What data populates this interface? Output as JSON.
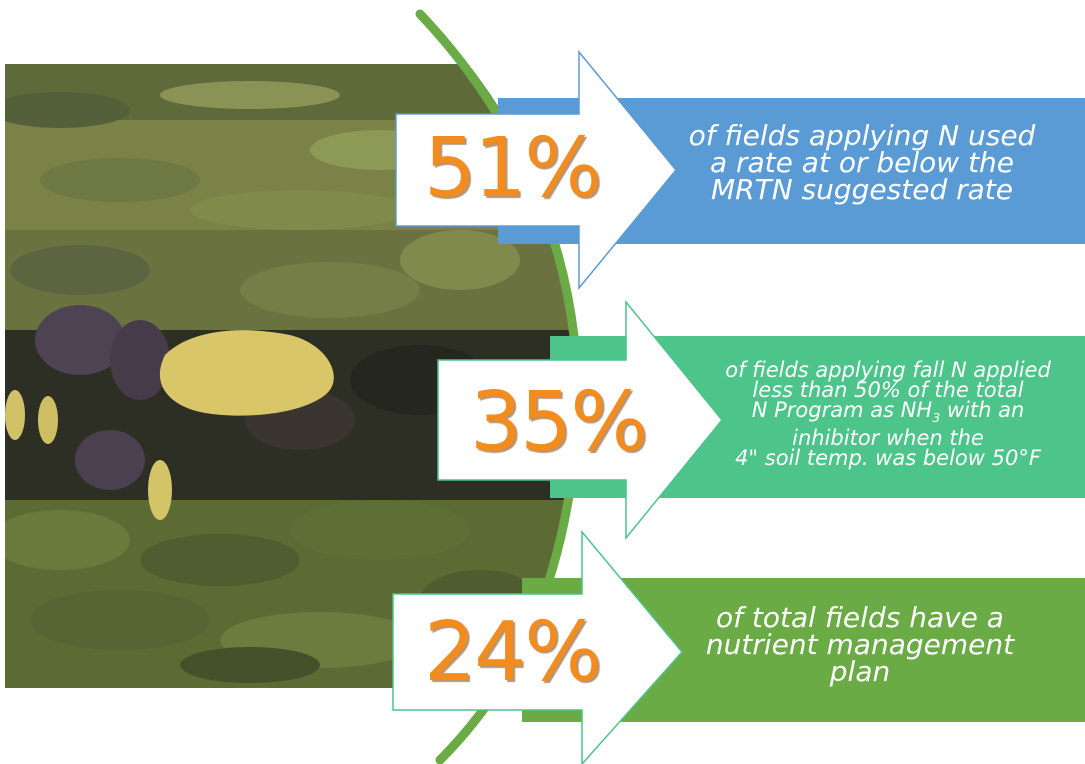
{
  "stats": [
    {
      "percent": "51%",
      "lines": [
        "of fields applying N used",
        "a rate at or below the",
        "MRTN suggested rate"
      ],
      "color": "#5b9bd5"
    },
    {
      "percent": "35%",
      "lines": [
        "of fields applying fall N applied",
        "less than 50% of the total",
        "N Program as NH",
        "3",
        " with an",
        "inhibitor when the",
        "4\" soil temp. was below 50°F"
      ],
      "color": "#4dc48a"
    },
    {
      "percent": "24%",
      "lines": [
        "of total fields have a",
        "nutrient management",
        "plan"
      ],
      "color": "#6aab45"
    }
  ],
  "colors": {
    "percent_text": "#f28c1e",
    "arc": "#6aab45",
    "arrow_fill": "#ffffff"
  }
}
